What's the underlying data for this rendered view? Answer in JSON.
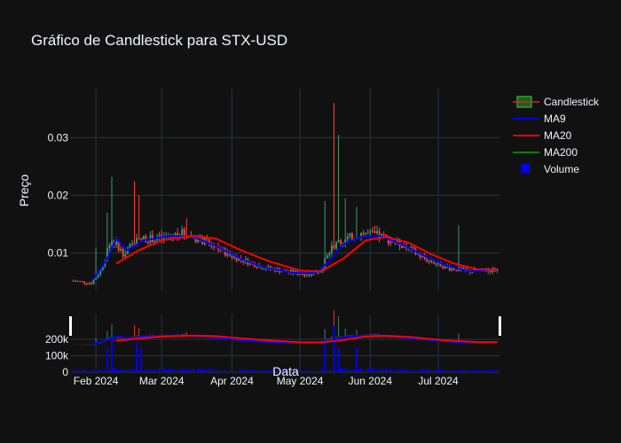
{
  "chart_data": {
    "type": "candlestick",
    "title": "Gráfico de Candlestick para STX-USD",
    "xlabel": "Data",
    "ylabel": "Preço",
    "x_ticks": [
      "Feb 2024",
      "Mar 2024",
      "Apr 2024",
      "May 2024",
      "Jun 2024",
      "Jul 2024"
    ],
    "x_range": [
      "2024-01-21",
      "2024-07-28"
    ],
    "price_axis": {
      "ticks": [
        0.01,
        0.02,
        0.03
      ],
      "tick_labels": [
        "0.01",
        "0.02",
        "0.03"
      ],
      "ylim": [
        0.0035,
        0.0385
      ]
    },
    "volume_axis": {
      "ticks": [
        0,
        100000,
        200000
      ],
      "tick_labels": [
        "0",
        "100k",
        "200k"
      ],
      "ylim": [
        0,
        350000
      ]
    },
    "legend": {
      "placement": "top-right",
      "items": [
        {
          "name": "Candlestick",
          "symbol": "candle",
          "color": "#2ca02c",
          "color_down": "#d62728"
        },
        {
          "name": "MA9",
          "symbol": "line",
          "color": "#0000ff"
        },
        {
          "name": "MA20",
          "symbol": "line",
          "color": "#ff0000"
        },
        {
          "name": "MA200",
          "symbol": "line",
          "color": "#008000"
        },
        {
          "name": "Volume",
          "symbol": "square",
          "color": "#0000ff"
        }
      ]
    },
    "colors": {
      "up": "#3d9970",
      "down": "#ff4136",
      "ma9": "#0000ff",
      "ma20": "#ff0000",
      "ma200": "#008000",
      "volume": "#0000ff",
      "background": "#111111",
      "grid": "#283442"
    },
    "price_keypoints": [
      [
        "2024-01-22",
        0.0052
      ],
      [
        "2024-01-30",
        0.0048
      ],
      [
        "2024-02-03",
        0.007
      ],
      [
        "2024-02-08",
        0.0125
      ],
      [
        "2024-02-13",
        0.01
      ],
      [
        "2024-02-20",
        0.0125
      ],
      [
        "2024-03-01",
        0.0125
      ],
      [
        "2024-03-10",
        0.0135
      ],
      [
        "2024-03-20",
        0.012
      ],
      [
        "2024-04-01",
        0.0095
      ],
      [
        "2024-04-15",
        0.0075
      ],
      [
        "2024-04-25",
        0.0068
      ],
      [
        "2024-05-05",
        0.0063
      ],
      [
        "2024-05-10",
        0.007
      ],
      [
        "2024-05-15",
        0.011
      ],
      [
        "2024-05-22",
        0.0125
      ],
      [
        "2024-05-28",
        0.0135
      ],
      [
        "2024-06-05",
        0.013
      ],
      [
        "2024-06-15",
        0.0115
      ],
      [
        "2024-06-25",
        0.009
      ],
      [
        "2024-07-05",
        0.0075
      ],
      [
        "2024-07-15",
        0.0068
      ],
      [
        "2024-07-27",
        0.0072
      ]
    ],
    "spikes": [
      [
        "2024-02-01",
        0.011
      ],
      [
        "2024-02-06",
        0.017
      ],
      [
        "2024-02-08",
        0.0232
      ],
      [
        "2024-02-18",
        0.0225
      ],
      [
        "2024-02-20",
        0.02
      ],
      [
        "2024-03-12",
        0.016
      ],
      [
        "2024-05-12",
        0.019
      ],
      [
        "2024-05-16",
        0.036
      ],
      [
        "2024-05-18",
        0.0305
      ],
      [
        "2024-05-21",
        0.0195
      ],
      [
        "2024-05-26",
        0.018
      ],
      [
        "2024-07-10",
        0.0148
      ]
    ],
    "ma9_points": [
      [
        "2024-01-31",
        0.0055
      ],
      [
        "2024-02-06",
        0.009
      ],
      [
        "2024-02-10",
        0.0125
      ],
      [
        "2024-02-15",
        0.0105
      ],
      [
        "2024-02-22",
        0.0122
      ],
      [
        "2024-03-05",
        0.013
      ],
      [
        "2024-03-15",
        0.0128
      ],
      [
        "2024-03-25",
        0.0112
      ],
      [
        "2024-04-05",
        0.009
      ],
      [
        "2024-04-15",
        0.0075
      ],
      [
        "2024-04-28",
        0.0066
      ],
      [
        "2024-05-08",
        0.0065
      ],
      [
        "2024-05-15",
        0.009
      ],
      [
        "2024-05-20",
        0.0115
      ],
      [
        "2024-05-28",
        0.0128
      ],
      [
        "2024-06-05",
        0.013
      ],
      [
        "2024-06-15",
        0.0115
      ],
      [
        "2024-06-25",
        0.0095
      ],
      [
        "2024-07-05",
        0.0078
      ],
      [
        "2024-07-15",
        0.0068
      ],
      [
        "2024-07-27",
        0.0072
      ]
    ],
    "ma20_points": [
      [
        "2024-02-10",
        0.0082
      ],
      [
        "2024-02-20",
        0.0105
      ],
      [
        "2024-03-01",
        0.0122
      ],
      [
        "2024-03-15",
        0.013
      ],
      [
        "2024-03-25",
        0.0125
      ],
      [
        "2024-04-05",
        0.0105
      ],
      [
        "2024-04-18",
        0.0085
      ],
      [
        "2024-05-01",
        0.007
      ],
      [
        "2024-05-10",
        0.0068
      ],
      [
        "2024-05-20",
        0.009
      ],
      [
        "2024-05-30",
        0.0122
      ],
      [
        "2024-06-08",
        0.0128
      ],
      [
        "2024-06-18",
        0.0118
      ],
      [
        "2024-06-28",
        0.0098
      ],
      [
        "2024-07-08",
        0.0082
      ],
      [
        "2024-07-18",
        0.0072
      ],
      [
        "2024-07-27",
        0.0071
      ]
    ],
    "volume_spikes": [
      [
        "2024-02-06",
        150000
      ],
      [
        "2024-02-08",
        200000
      ],
      [
        "2024-02-19",
        180000
      ],
      [
        "2024-02-21",
        150000
      ],
      [
        "2024-05-12",
        200000
      ],
      [
        "2024-05-16",
        280000
      ],
      [
        "2024-05-18",
        150000
      ],
      [
        "2024-05-26",
        150000
      ]
    ]
  }
}
